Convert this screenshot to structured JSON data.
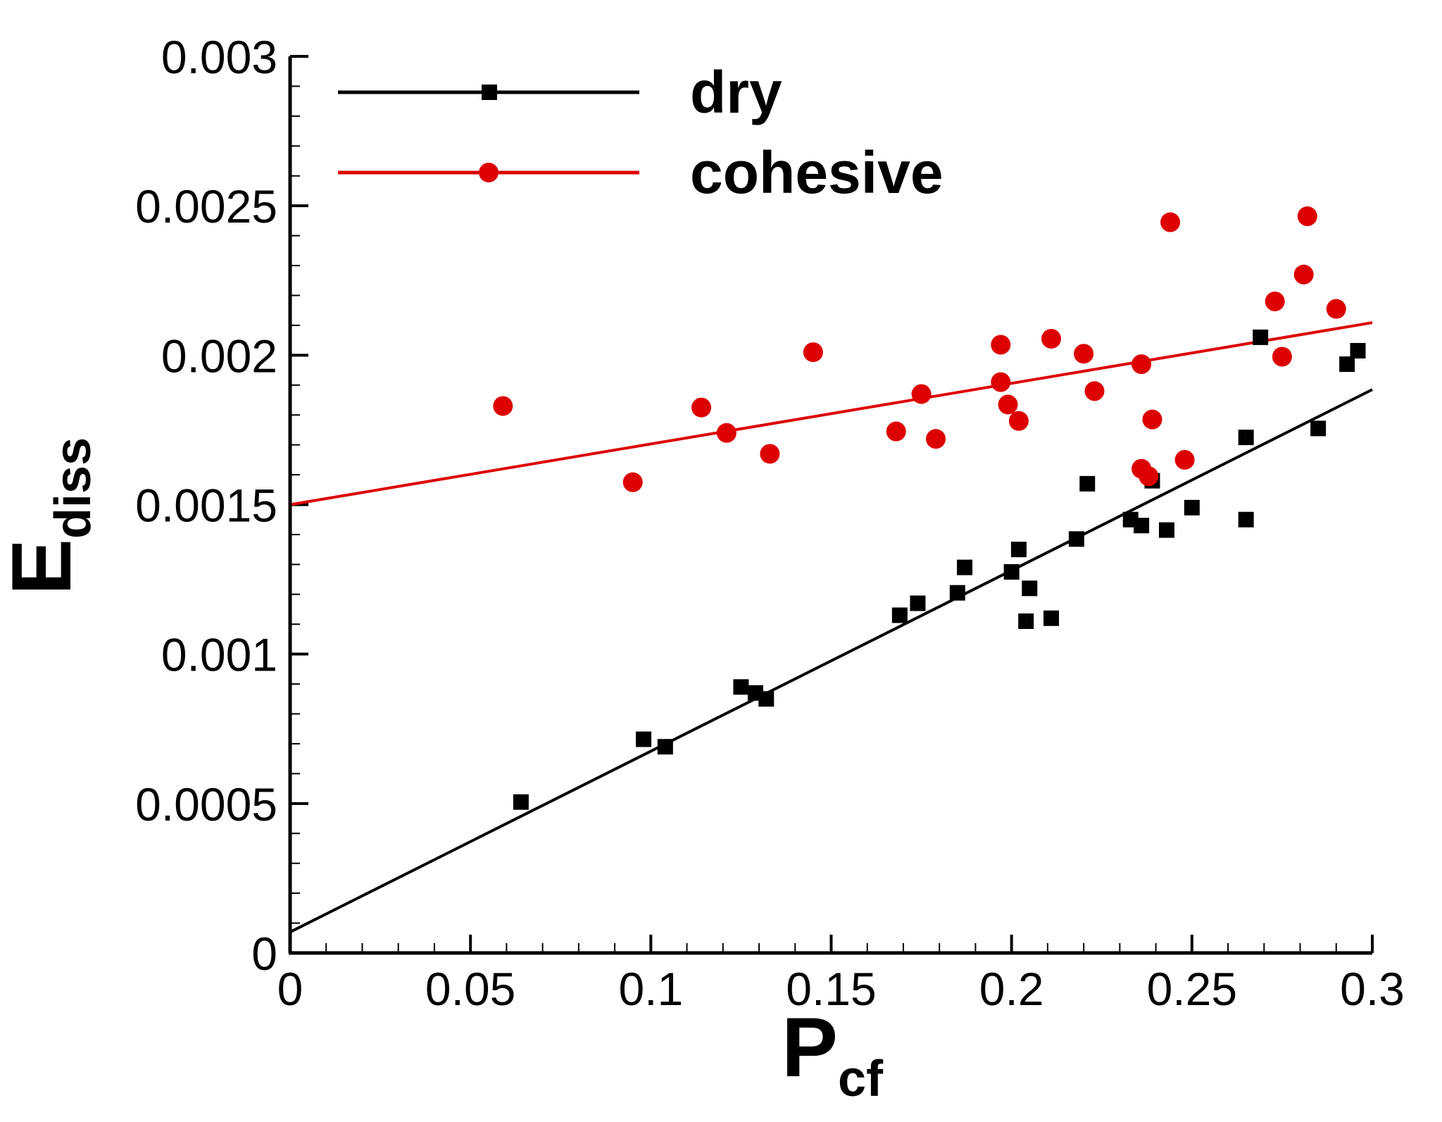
{
  "chart_data": {
    "type": "scatter",
    "title": "",
    "xlabel": {
      "main": "P",
      "sub": "cf"
    },
    "ylabel": {
      "main": "E",
      "sub": "diss"
    },
    "xlim": [
      0,
      0.3
    ],
    "ylim": [
      0,
      0.003
    ],
    "x_ticks": [
      "0",
      "0.05",
      "0.1",
      "0.15",
      "0.2",
      "0.25",
      "0.3"
    ],
    "y_ticks": [
      "0",
      "0.0005",
      "0.001",
      "0.0015",
      "0.002",
      "0.0025",
      "0.003"
    ],
    "grid": false,
    "legend_position": "top-left",
    "series": [
      {
        "name": "dry",
        "color": "#000000",
        "marker": "square",
        "fit": {
          "intercept": 7e-05,
          "slope": 0.00605
        },
        "points": [
          [
            0.064,
            0.000505
          ],
          [
            0.098,
            0.000715
          ],
          [
            0.104,
            0.00069
          ],
          [
            0.125,
            0.00089
          ],
          [
            0.129,
            0.00087
          ],
          [
            0.132,
            0.00085
          ],
          [
            0.169,
            0.00113
          ],
          [
            0.174,
            0.00117
          ],
          [
            0.185,
            0.001205
          ],
          [
            0.187,
            0.00129
          ],
          [
            0.2,
            0.001275
          ],
          [
            0.202,
            0.00135
          ],
          [
            0.204,
            0.00111
          ],
          [
            0.205,
            0.00122
          ],
          [
            0.211,
            0.00112
          ],
          [
            0.218,
            0.001385
          ],
          [
            0.221,
            0.00157
          ],
          [
            0.233,
            0.00145
          ],
          [
            0.236,
            0.00143
          ],
          [
            0.239,
            0.00158
          ],
          [
            0.243,
            0.001415
          ],
          [
            0.25,
            0.00149
          ],
          [
            0.265,
            0.00145
          ],
          [
            0.265,
            0.001725
          ],
          [
            0.269,
            0.00206
          ],
          [
            0.285,
            0.001755
          ],
          [
            0.293,
            0.00197
          ],
          [
            0.296,
            0.002015
          ]
        ]
      },
      {
        "name": "cohesive",
        "color": "#dd0000",
        "marker": "circle",
        "fit": {
          "intercept": 0.0015,
          "slope": 0.00203
        },
        "points": [
          [
            0.059,
            0.00183
          ],
          [
            0.095,
            0.001575
          ],
          [
            0.114,
            0.001825
          ],
          [
            0.121,
            0.00174
          ],
          [
            0.133,
            0.00167
          ],
          [
            0.145,
            0.00201
          ],
          [
            0.168,
            0.001745
          ],
          [
            0.175,
            0.00187
          ],
          [
            0.179,
            0.00172
          ],
          [
            0.197,
            0.00191
          ],
          [
            0.197,
            0.002035
          ],
          [
            0.199,
            0.001835
          ],
          [
            0.202,
            0.00178
          ],
          [
            0.211,
            0.002055
          ],
          [
            0.22,
            0.002005
          ],
          [
            0.223,
            0.00188
          ],
          [
            0.236,
            0.00197
          ],
          [
            0.236,
            0.00162
          ],
          [
            0.238,
            0.001595
          ],
          [
            0.239,
            0.001785
          ],
          [
            0.244,
            0.002445
          ],
          [
            0.248,
            0.00165
          ],
          [
            0.273,
            0.00218
          ],
          [
            0.275,
            0.001995
          ],
          [
            0.281,
            0.00227
          ],
          [
            0.282,
            0.002465
          ],
          [
            0.29,
            0.002155
          ]
        ]
      }
    ]
  }
}
